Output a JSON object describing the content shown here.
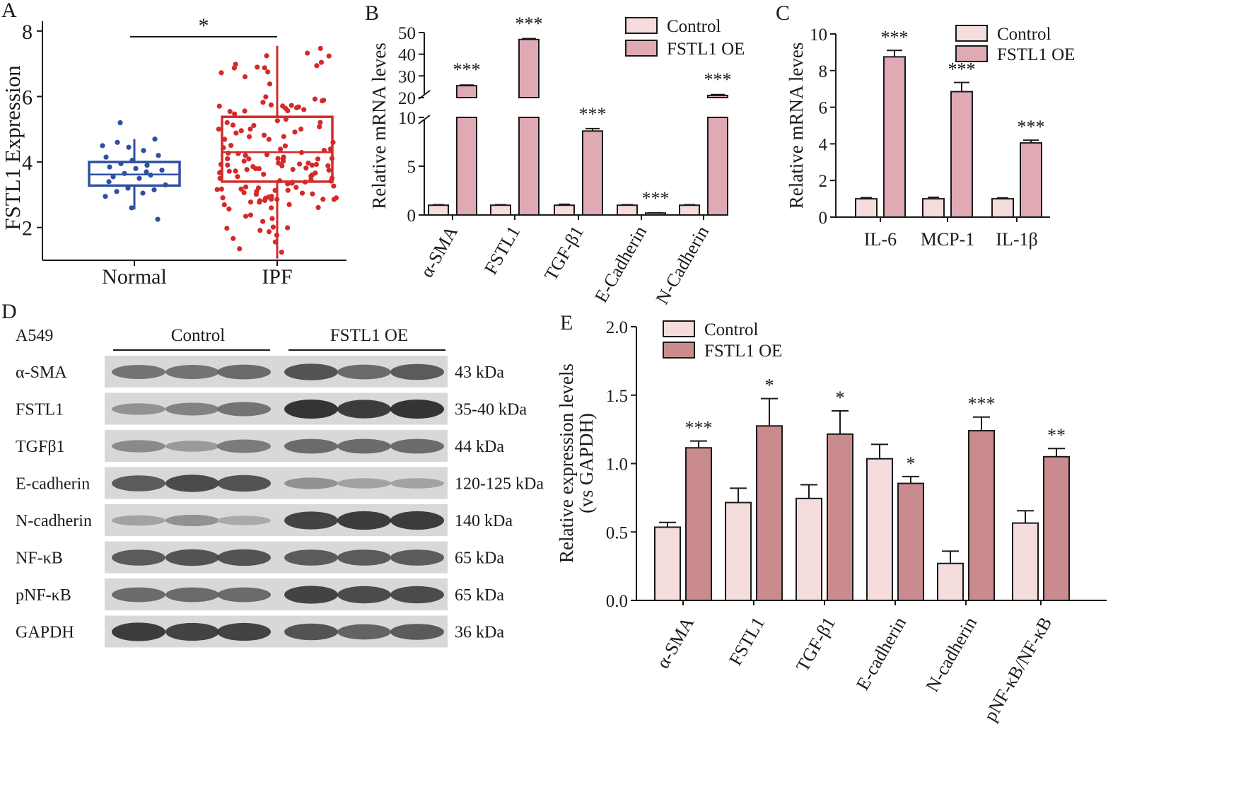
{
  "colors": {
    "control": "#f5dcdd",
    "oe": "#c98b8d",
    "panel_b_oe": "#e0aab4",
    "normal": "#2f4fa3",
    "ipf": "#d42a2a",
    "axis": "#1a1a1a"
  },
  "chart_data": [
    {
      "panel": "A",
      "type": "scatter",
      "ylabel": "FSTL1 Expression",
      "categories": [
        "Normal",
        "IPF"
      ],
      "yticks": [
        "2",
        "4",
        "6",
        "8"
      ],
      "ylim": [
        1.0,
        8.3
      ],
      "significance": "*",
      "boxes": [
        {
          "category": "Normal",
          "min": 2.55,
          "q1": 3.28,
          "median": 3.62,
          "q3": 4.0,
          "max": 4.7
        },
        {
          "category": "IPF",
          "min": 1.05,
          "q1": 3.4,
          "median": 4.3,
          "q3": 5.38,
          "max": 7.55
        }
      ],
      "points": {
        "Normal": [
          4.5,
          4.45,
          4.7,
          4.6,
          4.35,
          4.15,
          4.05,
          4.2,
          3.95,
          3.9,
          3.85,
          3.8,
          3.75,
          3.65,
          3.6,
          3.55,
          3.5,
          3.3,
          3.2,
          3.15,
          3.1,
          3.05,
          2.95,
          2.6,
          2.25,
          5.2,
          3.7,
          3.4
        ]
      }
    },
    {
      "panel": "B",
      "type": "bar",
      "ylabel": "Relative mRNA leves",
      "categories": [
        "α-SMA",
        "FSTL1",
        "TGF-β1",
        "E-Cadherin",
        "N-Cadherin"
      ],
      "axis_break": true,
      "yticks_lower": [
        "0",
        "5",
        "10"
      ],
      "yticks_upper": [
        "20",
        "30",
        "40",
        "50"
      ],
      "series": [
        {
          "name": "Control",
          "values": [
            1.0,
            1.0,
            1.0,
            1.0,
            1.0
          ],
          "errors": [
            0.05,
            0.05,
            0.1,
            0.05,
            0.05
          ]
        },
        {
          "name": "FSTL1 OE",
          "values": [
            25.5,
            46.8,
            8.6,
            0.2,
            21.0
          ],
          "errors": [
            0.3,
            0.4,
            0.25,
            0.03,
            0.4
          ]
        }
      ],
      "significance": [
        "***",
        "***",
        "***",
        "***",
        "***"
      ]
    },
    {
      "panel": "C",
      "type": "bar",
      "ylabel": "Relative mRNA leves",
      "categories": [
        "IL-6",
        "MCP-1",
        "IL-1β"
      ],
      "yticks": [
        "0",
        "2",
        "4",
        "6",
        "8",
        "10"
      ],
      "ylim": [
        0,
        10
      ],
      "series": [
        {
          "name": "Control",
          "values": [
            1.0,
            1.0,
            1.0
          ],
          "errors": [
            0.06,
            0.08,
            0.05
          ]
        },
        {
          "name": "FSTL1 OE",
          "values": [
            8.75,
            6.85,
            4.05
          ],
          "errors": [
            0.35,
            0.5,
            0.15
          ]
        }
      ],
      "significance": [
        "***",
        "***",
        "***"
      ]
    },
    {
      "panel": "E",
      "type": "bar",
      "ylabel": "Relative expression levels",
      "ylabel2": "(vs GAPDH)",
      "categories": [
        "α-SMA",
        "FSTL1",
        "TGF-β1",
        "E-cadherin",
        "N-cadherin",
        "pNF-κB/NF-κB"
      ],
      "yticks": [
        "0.0",
        "0.5",
        "1.0",
        "1.5",
        "2.0"
      ],
      "ylim": [
        0,
        2.0
      ],
      "series": [
        {
          "name": "Control",
          "values": [
            0.535,
            0.715,
            0.745,
            1.035,
            0.27,
            0.565
          ],
          "errors": [
            0.035,
            0.105,
            0.1,
            0.105,
            0.09,
            0.09
          ]
        },
        {
          "name": "FSTL1 OE",
          "values": [
            1.115,
            1.275,
            1.215,
            0.855,
            1.24,
            1.05
          ],
          "errors": [
            0.05,
            0.2,
            0.17,
            0.05,
            0.1,
            0.06
          ]
        }
      ],
      "significance": [
        "***",
        "*",
        "*",
        "*",
        "***",
        "**"
      ]
    }
  ],
  "panel_labels": {
    "a": "A",
    "b": "B",
    "c": "C",
    "d": "D",
    "e": "E"
  },
  "blot": {
    "cell_line": "A549",
    "group_control": "Control",
    "group_oe": "FSTL1 OE",
    "rows": [
      {
        "label": "α-SMA",
        "size": "43 kDa",
        "intensities": [
          0.55,
          0.55,
          0.6,
          0.75,
          0.6,
          0.7
        ]
      },
      {
        "label": "FSTL1",
        "size": "35-40 kDa",
        "intensities": [
          0.35,
          0.45,
          0.55,
          0.95,
          0.9,
          0.95
        ]
      },
      {
        "label": "TGFβ1",
        "size": "44 kDa",
        "intensities": [
          0.4,
          0.3,
          0.5,
          0.6,
          0.6,
          0.6
        ]
      },
      {
        "label": "E-cadherin",
        "size": "120-125 kDa",
        "intensities": [
          0.7,
          0.8,
          0.75,
          0.35,
          0.25,
          0.25
        ]
      },
      {
        "label": "N-cadherin",
        "size": "140 kDa",
        "intensities": [
          0.25,
          0.35,
          0.2,
          0.85,
          0.9,
          0.9
        ]
      },
      {
        "label": "NF-κB",
        "size": "65 kDa",
        "intensities": [
          0.7,
          0.75,
          0.75,
          0.7,
          0.7,
          0.7
        ]
      },
      {
        "label": "pNF-κB",
        "size": "65 kDa",
        "intensities": [
          0.6,
          0.6,
          0.6,
          0.85,
          0.8,
          0.8
        ]
      },
      {
        "label": "GAPDH",
        "size": "36 kDa",
        "intensities": [
          0.9,
          0.85,
          0.85,
          0.75,
          0.65,
          0.7
        ]
      }
    ]
  }
}
